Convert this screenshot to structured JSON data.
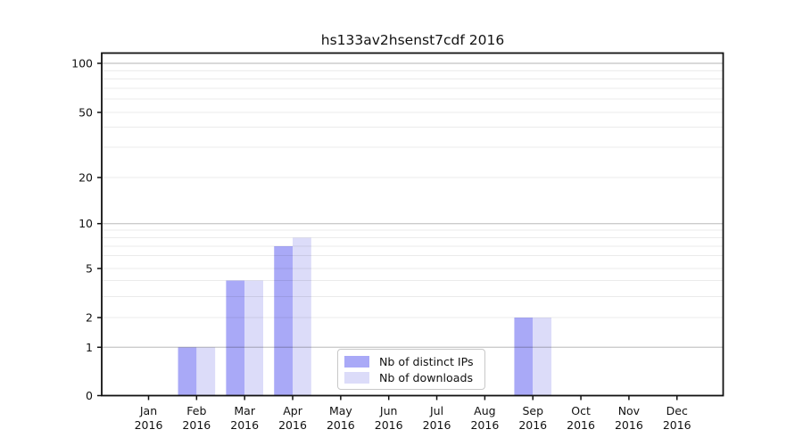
{
  "title": "hs133av2hsenst7cdf 2016",
  "chart_data": {
    "type": "bar",
    "title": "hs133av2hsenst7cdf 2016",
    "categories": [
      "Jan 2016",
      "Feb 2016",
      "Mar 2016",
      "Apr 2016",
      "May 2016",
      "Jun 2016",
      "Jul 2016",
      "Aug 2016",
      "Sep 2016",
      "Oct 2016",
      "Nov 2016",
      "Dec 2016"
    ],
    "series": [
      {
        "name": "Nb of distinct IPs",
        "color": "#a9a9f7",
        "values": [
          0,
          1,
          4,
          7,
          0,
          0,
          0,
          0,
          2,
          0,
          0,
          0
        ]
      },
      {
        "name": "Nb of downloads",
        "color": "#dcdcf9",
        "values": [
          0,
          1,
          4,
          8,
          0,
          0,
          0,
          0,
          2,
          0,
          0,
          0
        ]
      }
    ],
    "xlabel": "",
    "ylabel": "",
    "y_axis": {
      "scale": "log-like",
      "tick_labels": [
        0,
        1,
        2,
        5,
        10,
        20,
        50,
        100
      ],
      "minor_gridlines": [
        3,
        4,
        6,
        7,
        8,
        9,
        30,
        40,
        60,
        70,
        80,
        90
      ],
      "major_gridlines": [
        1,
        10,
        100
      ],
      "ylim": [
        0,
        112
      ]
    },
    "grid": true,
    "legend": {
      "position": "lower-center",
      "entries": [
        "Nb of distinct IPs",
        "Nb of downloads"
      ]
    }
  },
  "colors": {
    "bar_distinct_ips": "#a9a9f7",
    "bar_downloads": "#dcdcf9",
    "grid_major": "rgba(0,0,0,0.20)",
    "grid_minor": "rgba(0,0,0,0.08)",
    "spine": "#111111",
    "text": "#111111",
    "background": "#ffffff",
    "legend_border": "#c8c8c8"
  }
}
